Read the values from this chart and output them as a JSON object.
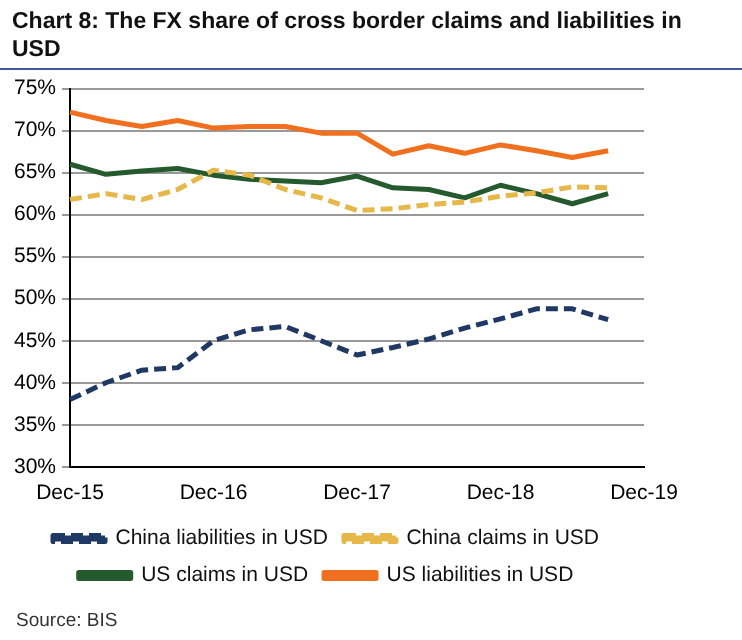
{
  "chart_data": {
    "type": "line",
    "title": "Chart 8: The FX share of cross border claims and liabilities in USD",
    "categories": [
      "Dec-15",
      null,
      null,
      null,
      "Dec-16",
      null,
      null,
      null,
      "Dec-17",
      null,
      null,
      null,
      "Dec-18",
      null,
      null,
      null,
      "Dec-19"
    ],
    "series": [
      {
        "name": "China liabilities in USD",
        "color": "#1f3864",
        "line_style": "dashed",
        "values": [
          38,
          40,
          41.5,
          41.8,
          45,
          46.3,
          46.7,
          45,
          43.3,
          44.2,
          45.2,
          46.5,
          47.6,
          48.8,
          48.8,
          47.5,
          null
        ]
      },
      {
        "name": "China claims in USD",
        "color": "#e6b84a",
        "line_style": "dashed",
        "values": [
          61.8,
          62.5,
          61.8,
          63,
          65.3,
          64.7,
          63,
          62,
          60.5,
          60.7,
          61.2,
          61.5,
          62.2,
          62.6,
          63.3,
          63.2,
          null
        ]
      },
      {
        "name": "US claims in USD",
        "color": "#245a2e",
        "line_style": "solid",
        "values": [
          66,
          64.8,
          65.2,
          65.5,
          64.7,
          64.2,
          64,
          63.8,
          64.6,
          63.2,
          63,
          62,
          63.5,
          62.5,
          61.3,
          62.5,
          null
        ]
      },
      {
        "name": "US liabilities in USD",
        "color": "#f07020",
        "line_style": "solid",
        "values": [
          72.2,
          71.2,
          70.5,
          71.2,
          70.3,
          70.5,
          70.5,
          69.7,
          69.7,
          67.2,
          68.2,
          67.3,
          68.3,
          67.6,
          66.8,
          67.6,
          null
        ]
      }
    ],
    "ylim": [
      30,
      75
    ],
    "yticks": [
      {
        "value": 30,
        "label": "30%"
      },
      {
        "value": 35,
        "label": "35%"
      },
      {
        "value": 40,
        "label": "40%"
      },
      {
        "value": 45,
        "label": "45%"
      },
      {
        "value": 50,
        "label": "50%"
      },
      {
        "value": 55,
        "label": "55%"
      },
      {
        "value": 60,
        "label": "60%"
      },
      {
        "value": 65,
        "label": "65%"
      },
      {
        "value": 70,
        "label": "70%"
      },
      {
        "value": 75,
        "label": "75%"
      }
    ],
    "grid": "y",
    "legend": "bottom",
    "marker": "none",
    "annotations": [
      "Source: BIS"
    ]
  }
}
